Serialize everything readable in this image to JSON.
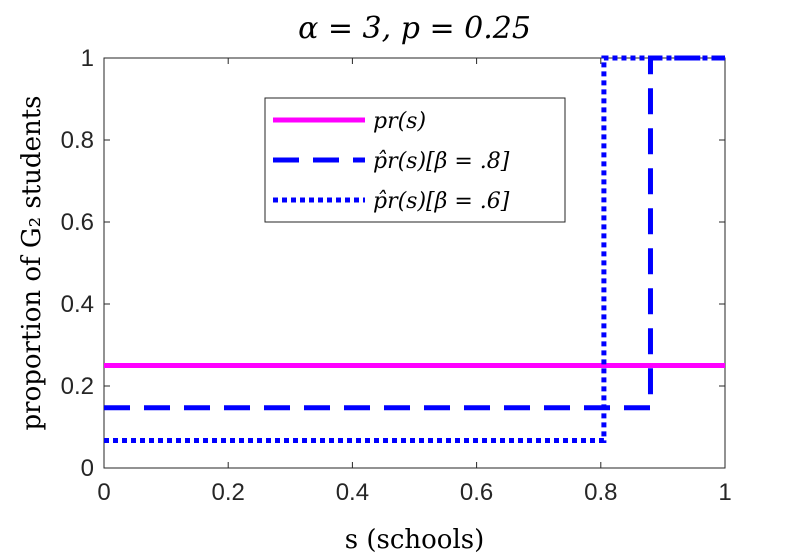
{
  "chart_data": {
    "type": "line",
    "title": "α = 3, p = 0.25",
    "xlabel": "s (schools)",
    "ylabel": "proportion of G₂ students",
    "xlim": [
      0,
      1
    ],
    "ylim": [
      0,
      1
    ],
    "xticks": [
      "0",
      "0.2",
      "0.4",
      "0.6",
      "0.8",
      "1"
    ],
    "yticks": [
      "0",
      "0.2",
      "0.4",
      "0.6",
      "0.8",
      "1"
    ],
    "grid": false,
    "legend_position": "top-center",
    "series": [
      {
        "name": "pr(s)",
        "color": "#ff00ff",
        "style": "solid",
        "points": [
          [
            0,
            0.25
          ],
          [
            1,
            0.25
          ]
        ]
      },
      {
        "name": "p̂r(s)[β = .8]",
        "color": "#0000ff",
        "style": "dashed",
        "points": [
          [
            0,
            0.147
          ],
          [
            0.88,
            0.147
          ],
          [
            0.88,
            1
          ],
          [
            1,
            1
          ]
        ]
      },
      {
        "name": "p̂r(s)[β = .6]",
        "color": "#0000ff",
        "style": "dotted",
        "points": [
          [
            0,
            0.067
          ],
          [
            0.805,
            0.067
          ],
          [
            0.805,
            1
          ],
          [
            1,
            1
          ]
        ]
      }
    ]
  }
}
